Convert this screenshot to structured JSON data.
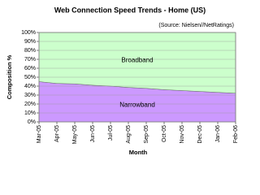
{
  "chart_data": {
    "type": "stacked_area",
    "title": "Web Connection Speed Trends - Home (US)",
    "subtitle": "(Source: Nielsen//NetRatings)",
    "xlabel": "Month",
    "ylabel": "Composition %",
    "categories": [
      "Mar-05",
      "Apr-05",
      "May-05",
      "Jun-05",
      "Jul-05",
      "Aug-05",
      "Sep-05",
      "Oct-05",
      "Nov-05",
      "Dec-05",
      "Jan-06",
      "Feb-06"
    ],
    "series": [
      {
        "name": "Narrowband",
        "color": "#cc99ff",
        "values": [
          45,
          43,
          42.5,
          41,
          40,
          38.5,
          37.5,
          36,
          35,
          34,
          33,
          32
        ]
      },
      {
        "name": "Broadband",
        "color": "#ccffcc",
        "values": [
          55,
          57,
          57.5,
          59,
          60,
          61.5,
          62.5,
          64,
          65,
          66,
          67,
          68
        ]
      }
    ],
    "ylim": [
      0,
      100
    ],
    "yticks": [
      {
        "value": 0,
        "label": "0%"
      },
      {
        "value": 10,
        "label": "10%"
      },
      {
        "value": 20,
        "label": "20%"
      },
      {
        "value": 30,
        "label": "30%"
      },
      {
        "value": 40,
        "label": "40%"
      },
      {
        "value": 50,
        "label": "50%"
      },
      {
        "value": 60,
        "label": "60%"
      },
      {
        "value": 70,
        "label": "70%"
      },
      {
        "value": 80,
        "label": "80%"
      },
      {
        "value": 90,
        "label": "90%"
      },
      {
        "value": 100,
        "label": "100%"
      }
    ],
    "grid": true
  }
}
